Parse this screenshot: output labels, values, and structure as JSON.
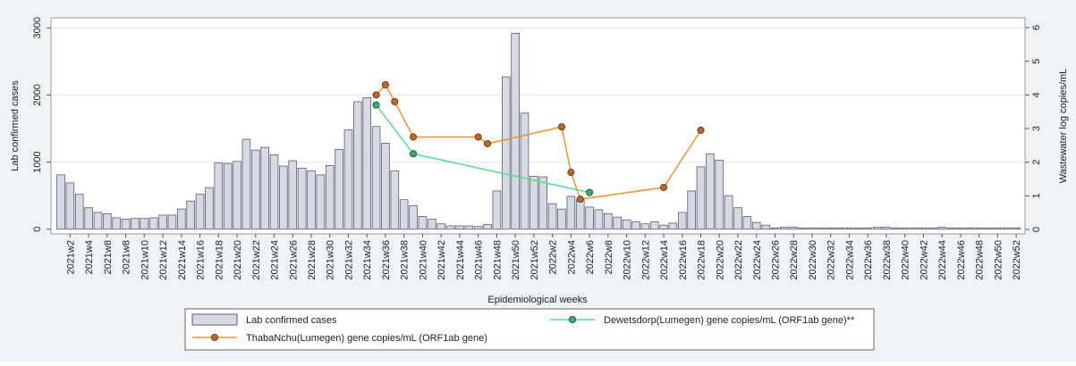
{
  "chart_data": {
    "type": "bar",
    "x_label": "Epidemiological weeks",
    "y_label": "Lab confirmed cases",
    "y2_label": "Wastewater log copies/mL",
    "categories": [
      null,
      "2021w2",
      null,
      "2021w4",
      null,
      "2021w8",
      null,
      "2021w8",
      null,
      "2021w10",
      null,
      "2021w12",
      null,
      "2021w14",
      null,
      "2021w16",
      null,
      "2021w18",
      null,
      "2021w20",
      null,
      "2021w22",
      null,
      "2021w24",
      null,
      "2021w26",
      null,
      "2021w28",
      null,
      "2021w30",
      null,
      "2021w32",
      null,
      "2021w34",
      null,
      "2021w36",
      null,
      "2021w38",
      null,
      "2021w40",
      null,
      "2021w42",
      null,
      "2021w44",
      null,
      "2021w46",
      null,
      "2021w48",
      null,
      "2021w50",
      null,
      "2021w52",
      null,
      "2022w2",
      null,
      "2022w4",
      null,
      "2022w6",
      null,
      "2022w8",
      null,
      "2022w10",
      null,
      "2022w12",
      null,
      "2022w14",
      null,
      "2022w16",
      null,
      "2022w18",
      null,
      "2022w20",
      null,
      "2022w22",
      null,
      "2022w24",
      null,
      "2022w26",
      null,
      "2022w28",
      null,
      "2022w30",
      null,
      "2022w32",
      null,
      "2022w34",
      null,
      "2022w36",
      null,
      "2022w38",
      null,
      "2022w40",
      null,
      "2022w42",
      null,
      "2022w44",
      null,
      "2022w46",
      null,
      "2022w48",
      null,
      "2022w50",
      null,
      "2022w52"
    ],
    "series": [
      {
        "name": "Lab confirmed cases",
        "type": "bar",
        "axis": "y",
        "color": "#d6dae4",
        "values": [
          810,
          690,
          520,
          320,
          250,
          230,
          170,
          150,
          160,
          160,
          170,
          210,
          210,
          300,
          420,
          520,
          620,
          990,
          980,
          1010,
          1340,
          1180,
          1220,
          1110,
          940,
          1020,
          910,
          870,
          810,
          950,
          1190,
          1480,
          1900,
          1960,
          1530,
          1280,
          870,
          440,
          350,
          190,
          150,
          80,
          50,
          50,
          50,
          40,
          70,
          570,
          2270,
          2920,
          1730,
          790,
          780,
          380,
          300,
          490,
          440,
          330,
          290,
          230,
          180,
          140,
          110,
          80,
          110,
          60,
          90,
          250,
          570,
          930,
          1120,
          1030,
          500,
          320,
          190,
          100,
          60,
          20,
          30,
          30,
          20,
          20,
          20,
          20,
          20,
          20,
          20,
          20,
          30,
          30,
          20,
          20,
          20,
          20,
          20,
          30,
          20,
          20,
          20,
          20,
          20,
          20,
          20,
          20
        ]
      },
      {
        "name": "Dewetsdorp(Lumegen) gene copies/mL (ORF1ab gene)**",
        "type": "line",
        "axis": "y2",
        "color": "#4ee08a",
        "marker_color": "#2fb36a",
        "values": [
          null,
          null,
          null,
          null,
          null,
          null,
          null,
          null,
          null,
          null,
          null,
          null,
          null,
          null,
          null,
          null,
          null,
          null,
          null,
          null,
          null,
          null,
          null,
          null,
          null,
          null,
          null,
          null,
          null,
          null,
          null,
          null,
          null,
          null,
          3.7,
          null,
          null,
          null,
          2.25,
          null,
          null,
          null,
          null,
          null,
          null,
          null,
          null,
          null,
          null,
          null,
          null,
          null,
          null,
          null,
          null,
          null,
          null,
          1.1,
          null,
          null,
          null,
          null,
          null,
          null,
          null,
          null,
          null,
          null,
          null,
          null,
          null,
          null,
          null,
          null,
          null,
          null,
          null,
          null,
          null,
          null,
          null,
          null,
          null,
          null,
          null,
          null,
          null,
          null,
          null,
          null,
          null,
          null,
          null,
          null,
          null,
          null,
          null,
          null,
          null,
          null,
          null,
          null,
          null,
          null
        ]
      },
      {
        "name": "ThabaNchu(Lumegen) gene copies/mL (ORF1ab gene)",
        "type": "line",
        "axis": "y2",
        "color": "#f0932b",
        "marker_color": "#c9651a",
        "values": [
          null,
          null,
          null,
          null,
          null,
          null,
          null,
          null,
          null,
          null,
          null,
          null,
          null,
          null,
          null,
          null,
          null,
          null,
          null,
          null,
          null,
          null,
          null,
          null,
          null,
          null,
          null,
          null,
          null,
          null,
          null,
          null,
          null,
          null,
          4.0,
          4.3,
          3.8,
          null,
          2.75,
          null,
          null,
          null,
          null,
          null,
          null,
          2.75,
          2.55,
          null,
          null,
          null,
          null,
          null,
          null,
          null,
          3.05,
          1.7,
          0.9,
          null,
          null,
          null,
          null,
          null,
          null,
          null,
          null,
          1.25,
          null,
          null,
          null,
          2.95,
          null,
          null,
          null,
          null,
          null,
          null,
          null,
          null,
          null,
          null,
          null,
          null,
          null,
          null,
          null,
          null,
          null,
          null,
          null,
          null,
          null,
          null,
          null,
          null,
          null,
          null,
          null,
          null,
          null,
          null,
          null,
          null,
          null,
          null
        ]
      }
    ],
    "ylim": [
      -70,
      3150
    ],
    "yticks": [
      0,
      1000,
      2000,
      3000
    ],
    "y2lim": [
      -0.13,
      6.29
    ],
    "y2ticks": [
      0,
      1,
      2,
      3,
      4,
      5,
      6
    ],
    "grid": true,
    "legend": "bottom"
  }
}
